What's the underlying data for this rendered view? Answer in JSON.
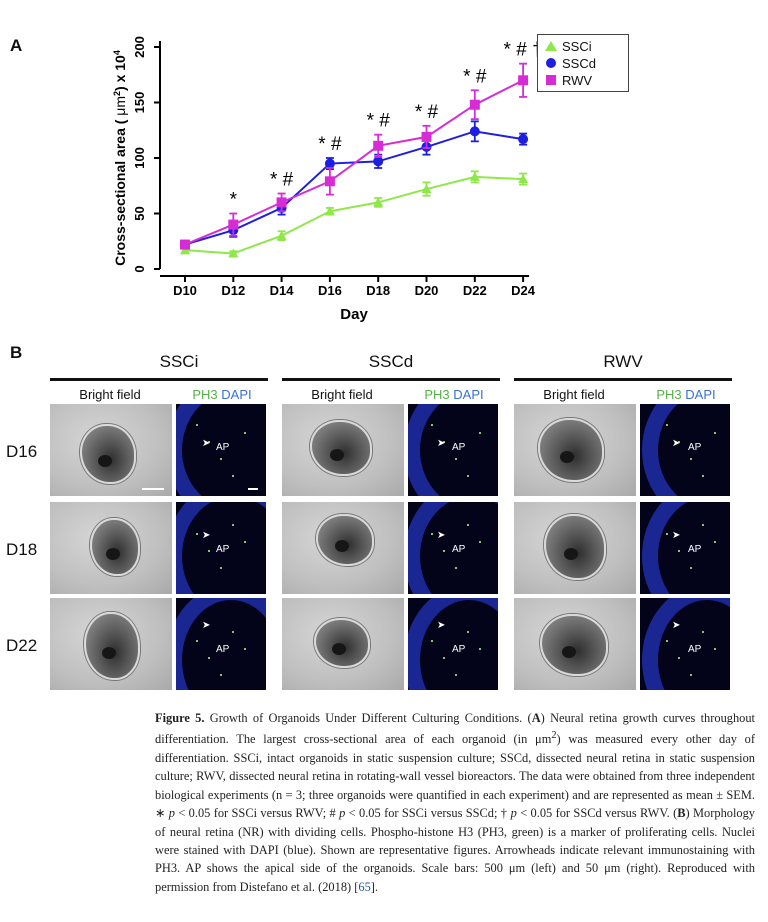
{
  "panelA": {
    "letter": "A"
  },
  "panelB": {
    "letter": "B"
  },
  "chart_data": {
    "type": "line",
    "ylabel": "Cross-sectional area ( μm²) x 10⁴",
    "ylabel_parts": [
      "Cross-sectional area ( ",
      "μm",
      "2",
      ") x 10",
      "4"
    ],
    "xlabel": "Day",
    "categories": [
      "D10",
      "D12",
      "D14",
      "D16",
      "D18",
      "D20",
      "D22",
      "D24"
    ],
    "ylim": [
      0,
      200
    ],
    "yticks": [
      0,
      50,
      100,
      150,
      200
    ],
    "grid": false,
    "legend_position": "top-right",
    "series": [
      {
        "name": "SSCi",
        "color": "#8fe84a",
        "marker": "triangle",
        "values": [
          17,
          14,
          30,
          52,
          60,
          72,
          83,
          81
        ],
        "errors": [
          3,
          2,
          4,
          3,
          4,
          6,
          5,
          5
        ]
      },
      {
        "name": "SSCd",
        "color": "#1e1ee0",
        "marker": "circle",
        "values": [
          22,
          35,
          55,
          95,
          97,
          110,
          124,
          117
        ],
        "errors": [
          2,
          6,
          6,
          5,
          6,
          7,
          9,
          5
        ]
      },
      {
        "name": "RWV",
        "color": "#d52cd5",
        "marker": "square",
        "values": [
          22,
          40,
          60,
          79,
          111,
          119,
          148,
          170
        ],
        "errors": [
          2,
          10,
          8,
          12,
          10,
          10,
          13,
          15
        ]
      }
    ],
    "annotations": [
      "",
      "*",
      "* #",
      "* #",
      "* #",
      "* #",
      "* #",
      "* # †"
    ]
  },
  "conditions": [
    {
      "title": "SSCi",
      "bright": "Bright field",
      "pre": "PH3",
      "post": "DAPI"
    },
    {
      "title": "SSCd",
      "bright": "Bright field",
      "pre": "PH3",
      "post": "DAPI"
    },
    {
      "title": "RWV",
      "bright": "Bright field",
      "pre": "PH3",
      "post": "DAPI"
    }
  ],
  "rows": [
    "D16",
    "D18",
    "D22"
  ],
  "ap_label": "AP",
  "colors": {
    "ph3_green": "#55b046",
    "dapi_blue": "#3a6fd8"
  },
  "caption": {
    "figure": "Figure 5.",
    "title": " Growth of Organoids Under Different Culturing Conditions. (",
    "A": "A",
    "text1": ") Neural retina growth curves throughout differentiation. The largest cross-sectional area of each organoid (in μm",
    "sup2": "2",
    "text2": ") was measured every other day of differentiation. SSCi, intact organoids in static suspension culture; SSCd, dissected neural retina in static suspension culture; RWV, dissected neural retina in rotating-wall vessel bioreactors. The data were obtained from three independent biological experiments (n = 3; three organoids were quantified in each experiment) and are represented as mean ± SEM. ∗ ",
    "p1": "p",
    "text3": " < 0.05 for SSCi versus RWV; # ",
    "p2": "p",
    "text4": " < 0.05 for SSCi versus SSCd; † ",
    "p3": "p",
    "text5": " < 0.05 for SSCd versus RWV. (",
    "B": "B",
    "text6": ") Morphology of neural retina (NR) with dividing cells. Phospho-histone H3 (PH3, green) is a marker of proliferating cells. Nuclei were stained with DAPI (blue). Shown are representative figures. Arrowheads indicate relevant immunostaining with PH3. AP shows the apical side of the organoids. Scale bars: 500 μm (left) and 50 μm (right). Reproduced with permission from Distefano et al. (2018) [",
    "ref": "65",
    "text7": "]."
  }
}
